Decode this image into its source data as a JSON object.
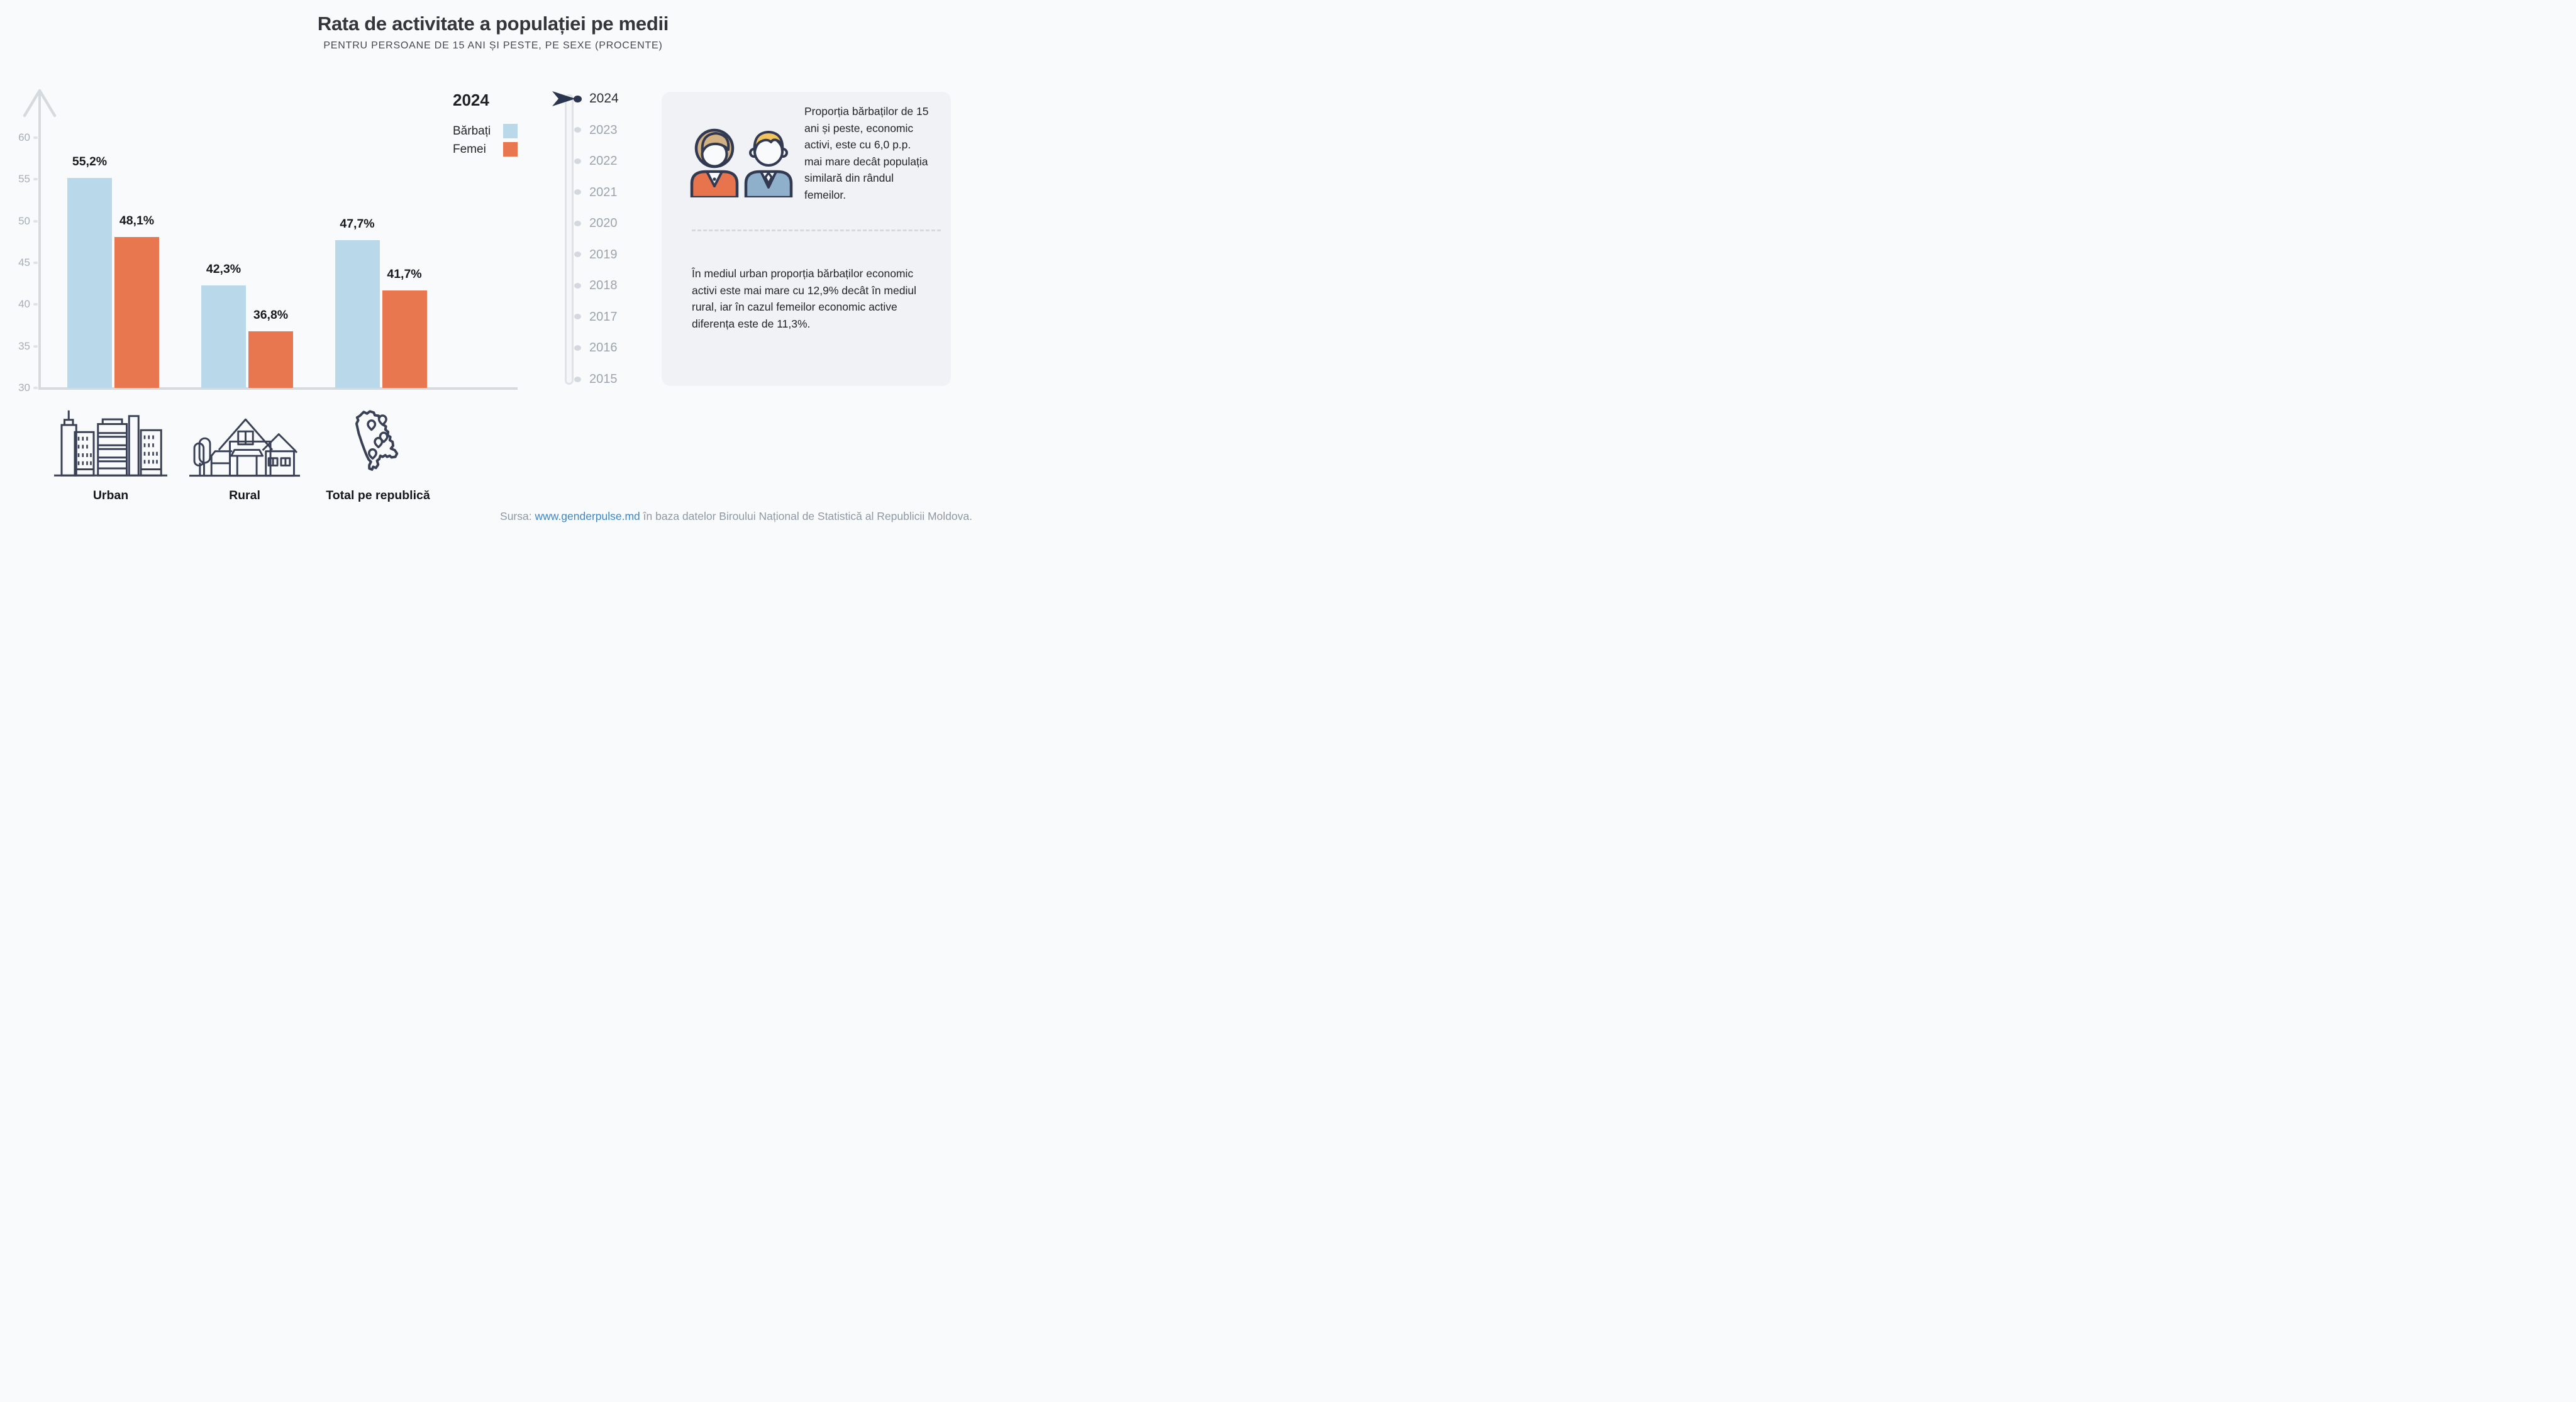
{
  "title": "Rata de activitate a populației pe medii",
  "subtitle": "PENTRU PERSOANE DE 15 ANI ȘI PESTE, PE SEXE (PROCENTE)",
  "legend": {
    "year": "2024",
    "items": [
      {
        "label": "Bărbați",
        "color": "#b9d8ea"
      },
      {
        "label": "Femei",
        "color": "#e8764f"
      }
    ]
  },
  "chart_data": {
    "type": "bar",
    "title": "Rata de activitate a populației pe medii",
    "subtitle": "Pentru persoane de 15 ani și peste, pe sexe (procente)",
    "categories": [
      "Urban",
      "Rural",
      "Total pe republică"
    ],
    "series": [
      {
        "name": "Bărbați",
        "color": "#b9d8ea",
        "values": [
          55.2,
          42.3,
          47.7
        ],
        "labels": [
          "55,2%",
          "42,3%",
          "47,7%"
        ]
      },
      {
        "name": "Femei",
        "color": "#e8764f",
        "values": [
          48.1,
          36.8,
          41.7
        ],
        "labels": [
          "48,1%",
          "36,8%",
          "41,7%"
        ]
      }
    ],
    "y_axis": {
      "min": 30,
      "max": 62,
      "ticks": [
        60,
        55,
        50,
        45,
        40,
        35,
        30
      ]
    },
    "grid": false,
    "legend_position": "top-right",
    "selected_year": "2024"
  },
  "timeline": {
    "years": [
      "2024",
      "2023",
      "2022",
      "2021",
      "2020",
      "2019",
      "2018",
      "2017",
      "2016",
      "2015"
    ],
    "selected_year": "2024"
  },
  "info_box": {
    "paragraph1": "Proporția bărbaților de 15 ani și peste, economic activi, este cu 6,0 p.p. mai mare decât populația similară din rândul femeilor.",
    "paragraph2": "În mediul urban proporția bărbaților economic activi este mai mare cu 12,9% decât în mediul rural, iar în cazul femeilor economic active diferența este de 11,3%."
  },
  "footer": {
    "prefix": "Sursa: ",
    "link": "www.genderpulse.md",
    "suffix": " în baza datelor Biroului Național de Statistică al Republicii Moldova."
  },
  "colors": {
    "bar_men": "#b9d8ea",
    "bar_women": "#e8764f",
    "accent_navy": "#2c3550",
    "axis_gray": "#d5dade",
    "link_blue": "#3e86c6",
    "info_box_bg": "#f0f2f6"
  }
}
